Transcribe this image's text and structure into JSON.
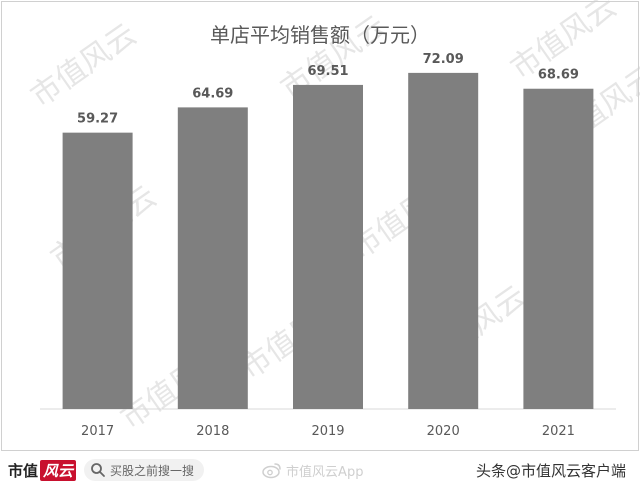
{
  "chart_data": {
    "type": "bar",
    "title": "单店平均销售额（万元）",
    "categories": [
      "2017",
      "2018",
      "2019",
      "2020",
      "2021"
    ],
    "values": [
      59.27,
      64.69,
      69.51,
      72.09,
      68.69
    ],
    "value_labels": [
      "59.27",
      "64.69",
      "69.51",
      "72.09",
      "68.69"
    ],
    "xlabel": "",
    "ylabel": "",
    "ylim": [
      0,
      80
    ],
    "grid": false,
    "legend": "none",
    "bar_color": "#7f7f7f"
  },
  "watermark": {
    "text": "市值风云",
    "color": "#e6e6e6"
  },
  "footer": {
    "logo_text": "市值",
    "logo_mark": "风云",
    "search_icon": "search-icon",
    "search_text": "买股之前搜一搜",
    "weibo_icon": "weibo-icon",
    "weibo_text": "市值风云App",
    "source_text": "头条@市值风云客户端"
  }
}
